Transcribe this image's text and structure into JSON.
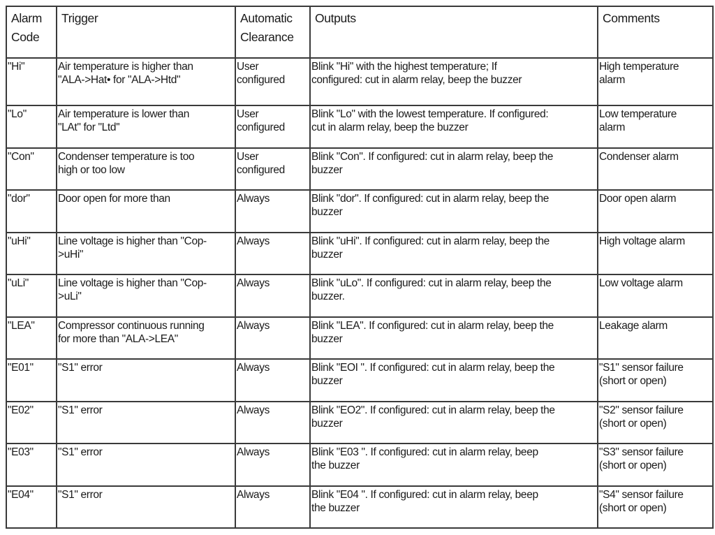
{
  "headers": [
    "Alarm\nCode",
    "Trigger",
    "Automatic\nClearance",
    "Outputs",
    "Comments"
  ],
  "rows": [
    {
      "code": "\"Hi\"",
      "trigger": "Air temperature is higher than\n\"ALA->Hat• for \"ALA->Htd\"",
      "clearance": " User\nconfigured",
      "outputs": "Blink \"Hi\" with the highest temperature; If\nconfigured: cut in alarm relay, beep the buzzer",
      "comments": "High temperature\nalarm"
    },
    {
      "code": "\"Lo\"",
      "trigger": "Air temperature is lower than\n\"LAt\" for \"Ltd''",
      "clearance": " User\nconfigured",
      "outputs": "Blink \"Lo\" with the lowest temperature. If configured:\ncut in alarm relay, beep the buzzer",
      "comments": "Low temperature\nalarm"
    },
    {
      "code": "\"Con\"",
      "trigger": "Condenser temperature is too\nhigh or too low",
      "clearance": " User\nconfigured",
      "outputs": "Blink \"Con\". If configured: cut in alarm relay, beep the\nbuzzer",
      "comments": "Condenser alarm"
    },
    {
      "code": "\"dor\"",
      "trigger": "Door open for more than",
      "clearance": "Always",
      "outputs": "Blink \"dor\". If configured: cut in alarm relay, beep the\nbuzzer",
      "comments": "Door open alarm"
    },
    {
      "code": "\"uHi\"",
      "trigger": "Line voltage is higher than \"Cop-\n>uHi\"",
      "clearance": "Always",
      "outputs": "Blink \"uHi\". If configured: cut in alarm relay, beep the\nbuzzer",
      "comments": "High voltage alarm"
    },
    {
      "code": "\"uLi\"",
      "trigger": "Line voltage is higher than \"Cop-\n>uLi\"",
      "clearance": "Always",
      "outputs": "Blink \"uLo\". If configured: cut in alarm relay, beep the\nbuzzer.",
      "comments": "Low voltage alarm"
    },
    {
      "code": "\"LEA\"",
      "trigger": "Compressor continuous running\nfor more than \"ALA->LEA\"",
      "clearance": "Always",
      "outputs": "Blink \"LEA\". If configured: cut in alarm relay, beep the\nbuzzer",
      "comments": "Leakage alarm"
    },
    {
      "code": "\"E01\"",
      "trigger": "\"S1\" error",
      "clearance": "Always",
      "outputs": "Blink \"EOI \". If configured: cut in alarm relay, beep the\nbuzzer",
      "comments": "\"S1\" sensor failure\n(short or open)"
    },
    {
      "code": "\"E02\"",
      "trigger": "\"S1\" error",
      "clearance": "Always",
      "outputs": "Blink \"EO2\". If configured: cut in alarm relay, beep the\nbuzzer",
      "comments": "\"S2\" sensor failure\n(short or open)"
    },
    {
      "code": "\"E03\"",
      "trigger": "\"S1\" error",
      "clearance": "Always",
      "outputs": "Blink \"E03 \". If configured: cut in alarm relay, beep\nthe buzzer",
      "comments": "\"S3\" sensor failure\n(short or open)"
    },
    {
      "code": "\"E04\"",
      "trigger": "\"S1\" error",
      "clearance": "Always",
      "outputs": "Blink \"E04 \". If configured: cut in alarm relay, beep\nthe buzzer",
      "comments": "\"S4\" sensor failure\n(short or open)"
    }
  ]
}
